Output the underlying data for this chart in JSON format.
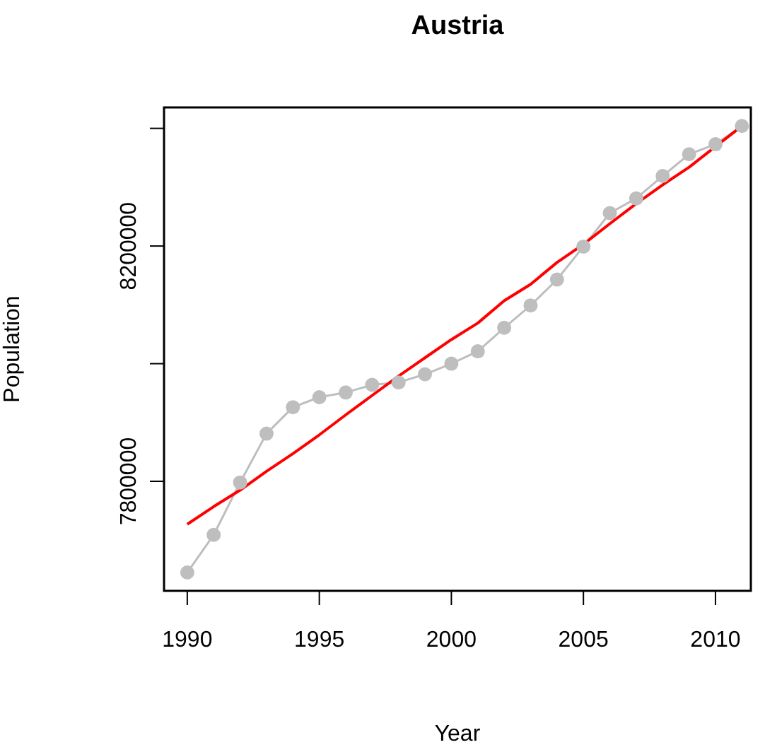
{
  "chart_data": {
    "type": "line",
    "title": "Austria",
    "xlabel": "Year",
    "ylabel": "Population",
    "x": [
      1990,
      1991,
      1992,
      1993,
      1994,
      1995,
      1996,
      1997,
      1998,
      1999,
      2000,
      2001,
      2002,
      2003,
      2004,
      2005,
      2006,
      2007,
      2008,
      2009,
      2010,
      2011
    ],
    "series": [
      {
        "color": "#bebebe",
        "marker": "circle",
        "values": [
          7645000,
          7709000,
          7798000,
          7881000,
          7926000,
          7943000,
          7951000,
          7964000,
          7968000,
          7982000,
          8000000,
          8021000,
          8061000,
          8099000,
          8143000,
          8199000,
          8256000,
          8281000,
          8319000,
          8356000,
          8373000,
          8404000
        ]
      },
      {
        "color": "#ff0000",
        "marker": "none",
        "values": [
          7727000,
          7757000,
          7785000,
          7817000,
          7847000,
          7879000,
          7913000,
          7946000,
          7979000,
          8010000,
          8041000,
          8069000,
          8107000,
          8135000,
          8172000,
          8203000,
          8238000,
          8272000,
          8304000,
          8334000,
          8369000,
          8404000
        ]
      }
    ],
    "xlim": [
      1989.12,
      2011.34
    ],
    "xticks": [
      1990,
      1995,
      2000,
      2005,
      2010
    ],
    "ylim": [
      7613800,
      8435600
    ],
    "yticks": [
      {
        "value": 7800000,
        "label": "7800000"
      },
      {
        "value": 8000000,
        "label": null
      },
      {
        "value": 8200000,
        "label": "8200000"
      },
      {
        "value": 8400000,
        "label": null
      }
    ],
    "grid": false
  }
}
